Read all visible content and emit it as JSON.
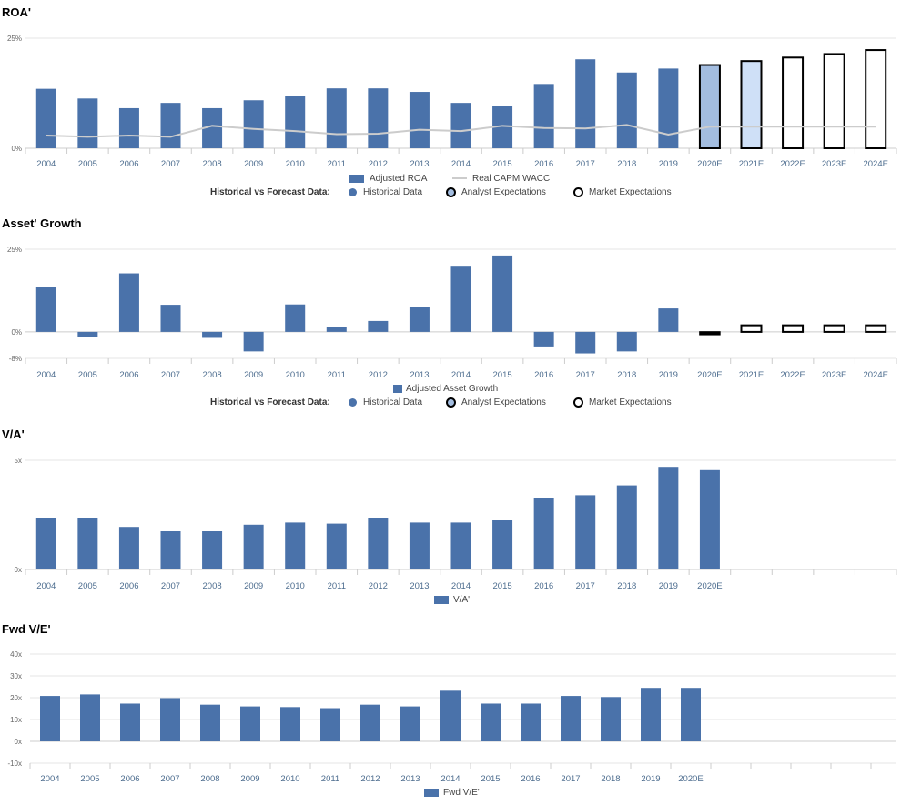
{
  "chart_data": [
    {
      "id": "roa",
      "type": "bar",
      "title": "ROA'",
      "categories": [
        "2004",
        "2005",
        "2006",
        "2007",
        "2008",
        "2009",
        "2010",
        "2011",
        "2012",
        "2013",
        "2014",
        "2015",
        "2016",
        "2017",
        "2018",
        "2019",
        "2020E",
        "2021E",
        "2022E",
        "2023E",
        "2024E"
      ],
      "series": [
        {
          "name": "Adjusted ROA",
          "values": [
            13.5,
            11.3,
            9.1,
            10.3,
            9.1,
            10.9,
            11.8,
            13.6,
            13.6,
            12.8,
            10.3,
            9.6,
            14.6,
            20.2,
            17.2,
            18.1,
            18.9,
            19.8,
            20.6,
            21.4,
            22.3
          ]
        },
        {
          "name": "Real CAPM WACC",
          "type": "line",
          "values": [
            2.9,
            2.6,
            2.9,
            2.6,
            5.1,
            4.4,
            3.9,
            3.2,
            3.3,
            4.2,
            3.9,
            5.1,
            4.6,
            4.5,
            5.3,
            3.1,
            4.9,
            4.9,
            4.9,
            4.9,
            4.9
          ]
        }
      ],
      "bar_styles": [
        "historical",
        "historical",
        "historical",
        "historical",
        "historical",
        "historical",
        "historical",
        "historical",
        "historical",
        "historical",
        "historical",
        "historical",
        "historical",
        "historical",
        "historical",
        "historical",
        "analyst-2020",
        "analyst-2021",
        "market",
        "market",
        "market"
      ],
      "yticks": [
        "25%",
        "0%"
      ],
      "ylim": [
        0,
        25
      ],
      "grid": true
    },
    {
      "id": "growth",
      "type": "bar",
      "title": "Asset' Growth",
      "categories": [
        "2004",
        "2005",
        "2006",
        "2007",
        "2008",
        "2009",
        "2010",
        "2011",
        "2012",
        "2013",
        "2014",
        "2015",
        "2016",
        "2017",
        "2018",
        "2019",
        "2020E",
        "2021E",
        "2022E",
        "2023E",
        "2024E"
      ],
      "series": [
        {
          "name": "Adjusted Asset Growth",
          "values": [
            13.7,
            -1.4,
            17.7,
            8.2,
            -1.8,
            -5.9,
            8.3,
            1.4,
            3.3,
            7.4,
            20.0,
            23.1,
            -4.4,
            -6.5,
            -5.9,
            7.1,
            -0.8,
            2.0,
            2.0,
            2.0,
            2.0
          ]
        }
      ],
      "bar_styles": [
        "historical",
        "historical",
        "historical",
        "historical",
        "historical",
        "historical",
        "historical",
        "historical",
        "historical",
        "historical",
        "historical",
        "historical",
        "historical",
        "historical",
        "historical",
        "historical",
        "forecast-black",
        "market",
        "market",
        "market",
        "market"
      ],
      "yticks": [
        "25%",
        "0%",
        "-8%"
      ],
      "ylim": [
        -8,
        25
      ],
      "grid": true
    },
    {
      "id": "va",
      "type": "bar",
      "title": "V/A'",
      "categories": [
        "2004",
        "2005",
        "2006",
        "2007",
        "2008",
        "2009",
        "2010",
        "2011",
        "2012",
        "2013",
        "2014",
        "2015",
        "2016",
        "2017",
        "2018",
        "2019",
        "2020E",
        "",
        "",
        "",
        ""
      ],
      "series": [
        {
          "name": "V/A'",
          "values": [
            2.35,
            2.35,
            1.95,
            1.75,
            1.75,
            2.05,
            2.15,
            2.1,
            2.35,
            2.15,
            2.15,
            2.25,
            3.25,
            3.4,
            3.85,
            4.7,
            4.55,
            null,
            null,
            null,
            null
          ]
        }
      ],
      "yticks": [
        "5x",
        "0x"
      ],
      "ylim": [
        0,
        5
      ],
      "grid": true
    },
    {
      "id": "fve",
      "type": "bar",
      "title": "Fwd V/E'",
      "categories": [
        "2004",
        "2005",
        "2006",
        "2007",
        "2008",
        "2009",
        "2010",
        "2011",
        "2012",
        "2013",
        "2014",
        "2015",
        "2016",
        "2017",
        "2018",
        "2019",
        "2020E",
        "",
        "",
        "",
        ""
      ],
      "series": [
        {
          "name": "Fwd V/E'",
          "values": [
            20.8,
            21.5,
            17.3,
            19.8,
            16.8,
            16.0,
            15.7,
            15.2,
            16.8,
            16.0,
            23.2,
            17.3,
            17.3,
            20.8,
            20.3,
            24.5,
            24.5,
            null,
            null,
            null,
            null
          ]
        }
      ],
      "yticks": [
        "40x",
        "30x",
        "20x",
        "10x",
        "0x",
        "-10x"
      ],
      "ylim": [
        -10,
        40
      ],
      "grid": true
    }
  ],
  "legends": {
    "roa": {
      "series_1": "Adjusted ROA",
      "series_2": "Real CAPM WACC"
    },
    "growth": {
      "series_1": "Adjusted Asset Growth"
    },
    "va": {
      "series_1": "V/A'"
    },
    "fve": {
      "series_1": "Fwd V/E'"
    },
    "hvf_label": "Historical vs Forecast Data:",
    "historical": "Historical Data",
    "analyst": "Analyst Expectations",
    "market": "Market Expectations"
  },
  "colors": {
    "bar": "#4a72aa",
    "analyst_2020": "#a3bde0",
    "analyst_2021": "#cfe0f7",
    "market_fill": "#ffffff",
    "outline": "#000000",
    "wacc_line": "#cccccc",
    "grid": "#e6e6e6",
    "axis": "#cccccc",
    "tick_text": "#666666",
    "cat_text": "#4d6d8f"
  }
}
